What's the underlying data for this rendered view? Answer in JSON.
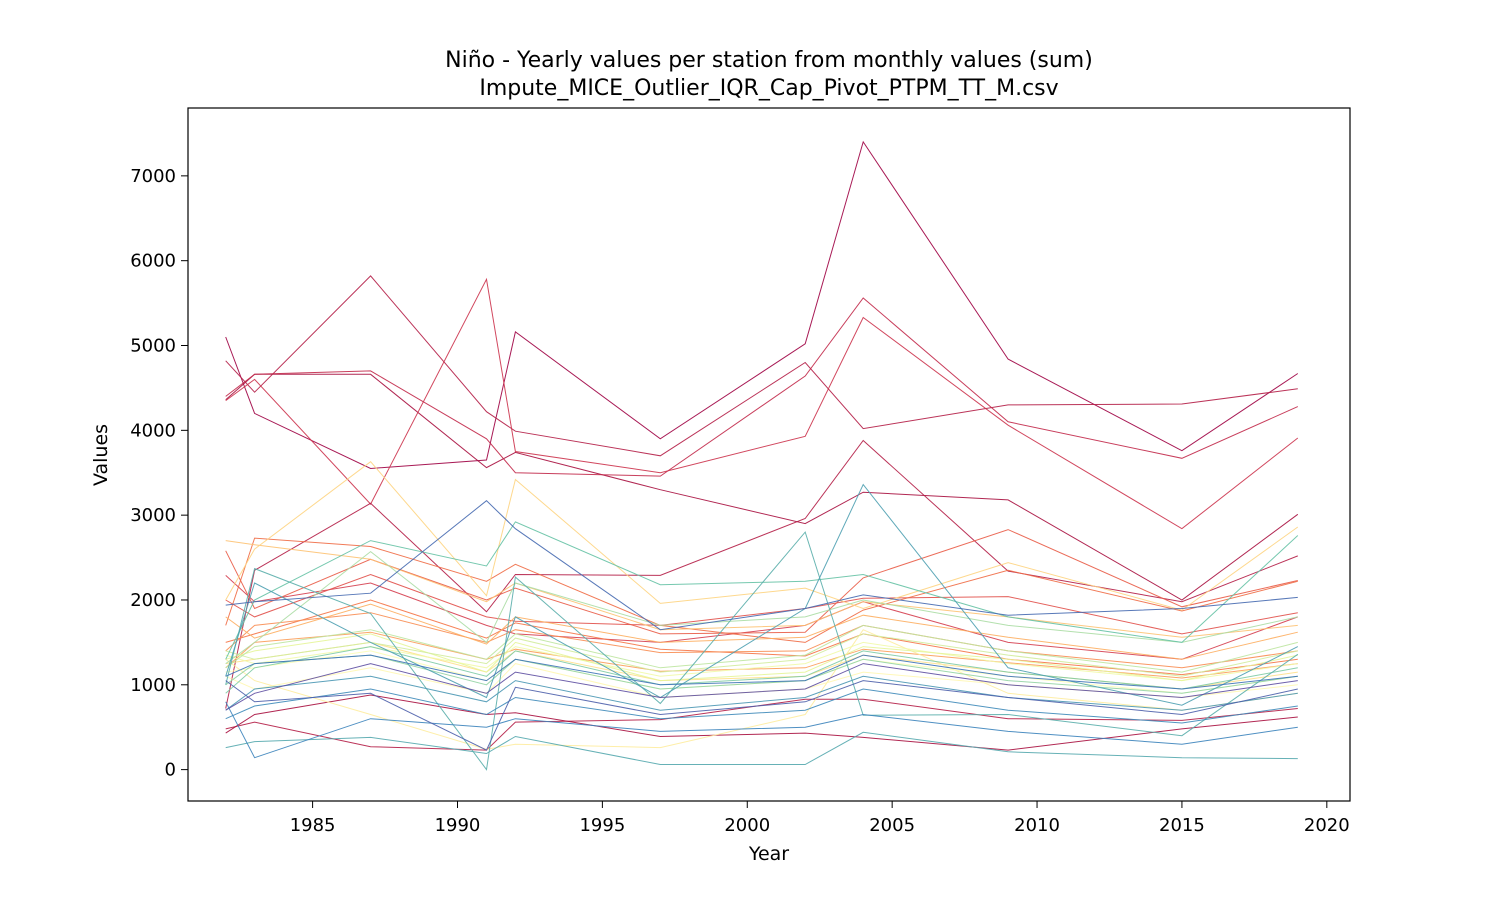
{
  "chart_data": {
    "type": "line",
    "title": "Niño - Yearly values per station from monthly values (sum)",
    "subtitle": "Impute_MICE_Outlier_IQR_Cap_Pivot_PTPM_TT_M.csv",
    "xlabel": "Year",
    "ylabel": "Values",
    "xlim": [
      1980.7,
      2020.8
    ],
    "ylim": [
      -370,
      7800
    ],
    "xticks": [
      "1985",
      "1990",
      "1995",
      "2000",
      "2005",
      "2010",
      "2015",
      "2020"
    ],
    "yticks": [
      "0",
      "1000",
      "2000",
      "3000",
      "4000",
      "5000",
      "6000",
      "7000"
    ],
    "grid": false,
    "legend": "none",
    "colormap": "Spectral",
    "x": [
      1982,
      1983,
      1987,
      1991,
      1992,
      1997,
      2002,
      2004,
      2009,
      2015,
      2019
    ],
    "series": [
      {
        "color": "#9e0142",
        "values": [
          5100,
          4200,
          3550,
          3650,
          5160,
          3900,
          5020,
          7400,
          4840,
          3760,
          4670
        ]
      },
      {
        "color": "#a8103f",
        "values": [
          4360,
          4660,
          4660,
          3560,
          3740,
          3300,
          2900,
          3270,
          3180,
          2000,
          3010
        ]
      },
      {
        "color": "#b41d46",
        "values": [
          4820,
          4450,
          5820,
          4220,
          3990,
          3700,
          4800,
          4020,
          4300,
          4310,
          4490
        ]
      },
      {
        "color": "#c2294a",
        "values": [
          4400,
          4660,
          4700,
          3900,
          3500,
          3460,
          4640,
          5560,
          4100,
          3670,
          4280
        ]
      },
      {
        "color": "#cc334d",
        "values": [
          4350,
          4600,
          3130,
          5780,
          3750,
          3500,
          3930,
          5330,
          4060,
          2840,
          3910
        ]
      },
      {
        "color": "#b41d46",
        "values": [
          720,
          2350,
          3140,
          1860,
          2300,
          2290,
          2960,
          3880,
          2340,
          1980,
          2520
        ]
      },
      {
        "color": "#b41d46",
        "values": [
          480,
          560,
          270,
          230,
          560,
          590,
          830,
          830,
          600,
          580,
          720
        ]
      },
      {
        "color": "#a8103f",
        "values": [
          430,
          650,
          880,
          650,
          670,
          390,
          430,
          380,
          230,
          480,
          620
        ]
      },
      {
        "color": "#d53e4f",
        "values": [
          2290,
          1980,
          2200,
          1700,
          1600,
          1500,
          1700,
          1980,
          1500,
          1300,
          1800
        ]
      },
      {
        "color": "#e1504a",
        "values": [
          2000,
          1800,
          2300,
          1800,
          1750,
          1700,
          1900,
          2020,
          2040,
          1600,
          1850
        ]
      },
      {
        "color": "#e95c47",
        "values": [
          2580,
          1900,
          2480,
          2000,
          2140,
          1600,
          1620,
          2260,
          2830,
          1920,
          2230
        ]
      },
      {
        "color": "#f06c45",
        "values": [
          1700,
          2730,
          2630,
          2220,
          2420,
          1700,
          1500,
          1880,
          2350,
          1870,
          2220
        ]
      },
      {
        "color": "#f57446",
        "values": [
          1500,
          1600,
          2000,
          1550,
          1730,
          1420,
          1340,
          1600,
          1300,
          1120,
          1300
        ]
      },
      {
        "color": "#f88d52",
        "values": [
          1400,
          1700,
          1850,
          1500,
          1650,
          1380,
          1400,
          1700,
          1400,
          1200,
          1400
        ]
      },
      {
        "color": "#fb9d59",
        "values": [
          1200,
          1500,
          1620,
          1300,
          1420,
          1160,
          1200,
          1420,
          1260,
          1080,
          1250
        ]
      },
      {
        "color": "#fdae61",
        "values": [
          1800,
          1550,
          1950,
          1480,
          1800,
          1500,
          1560,
          1820,
          1560,
          1300,
          1620
        ]
      },
      {
        "color": "#fdc272",
        "values": [
          2700,
          2650,
          2480,
          1980,
          2200,
          1650,
          1700,
          1980,
          1800,
          1560,
          1700
        ]
      },
      {
        "color": "#fed481",
        "values": [
          2000,
          2600,
          3630,
          2050,
          3420,
          1960,
          2140,
          1900,
          2440,
          1880,
          2860
        ]
      },
      {
        "color": "#fee08b",
        "values": [
          1250,
          1300,
          1500,
          1150,
          1400,
          1050,
          1100,
          1350,
          1150,
          950,
          1150
        ]
      },
      {
        "color": "#feec9f",
        "values": [
          1300,
          1050,
          650,
          240,
          300,
          260,
          650,
          1650,
          900,
          700,
          900
        ]
      },
      {
        "color": "#fff7b2",
        "values": [
          1100,
          950,
          1200,
          900,
          1250,
          850,
          950,
          1150,
          1000,
          850,
          1000
        ]
      },
      {
        "color": "#fbfdb8",
        "values": [
          1150,
          1200,
          1400,
          1050,
          1300,
          950,
          1050,
          1300,
          1100,
          900,
          1100
        ]
      },
      {
        "color": "#f1f9a9",
        "values": [
          1350,
          1250,
          1450,
          1200,
          1450,
          1100,
          1250,
          1500,
          1250,
          1050,
          1250
        ]
      },
      {
        "color": "#e6f598",
        "values": [
          1300,
          1400,
          1600,
          1150,
          1500,
          1050,
          1150,
          1450,
          1300,
          1050,
          1350
        ]
      },
      {
        "color": "#d1ec9c",
        "values": [
          1400,
          1300,
          1500,
          1250,
          1550,
          1150,
          1300,
          1600,
          1350,
          1100,
          1400
        ]
      },
      {
        "color": "#bee5a0",
        "values": [
          1200,
          1450,
          1650,
          1300,
          1600,
          1200,
          1350,
          1700,
          1400,
          1150,
          1500
        ]
      },
      {
        "color": "#abdda4",
        "values": [
          1250,
          1500,
          2570,
          1500,
          2200,
          1700,
          1800,
          2000,
          1700,
          1500,
          1800
        ]
      },
      {
        "color": "#94d4a4",
        "values": [
          1000,
          1250,
          1350,
          1000,
          1300,
          950,
          1050,
          1300,
          1050,
          900,
          1100
        ]
      },
      {
        "color": "#7ecba4",
        "values": [
          900,
          1200,
          1450,
          1100,
          1400,
          1000,
          1100,
          1400,
          1150,
          950,
          1200
        ]
      },
      {
        "color": "#66c2a5",
        "values": [
          1300,
          2000,
          2700,
          2400,
          2920,
          2180,
          2220,
          2300,
          1800,
          1500,
          2760
        ]
      },
      {
        "color": "#55a8ae",
        "values": [
          260,
          330,
          380,
          190,
          390,
          60,
          60,
          440,
          210,
          140,
          130
        ]
      },
      {
        "color": "#5aaeab",
        "values": [
          1000,
          2370,
          1840,
          0,
          2270,
          780,
          2800,
          640,
          650,
          400,
          1360
        ]
      },
      {
        "color": "#4ea0b1",
        "values": [
          1100,
          2200,
          1500,
          850,
          1800,
          850,
          1900,
          3360,
          1200,
          760,
          1450
        ]
      },
      {
        "color": "#4a97b4",
        "values": [
          700,
          950,
          1100,
          800,
          1050,
          700,
          850,
          1100,
          850,
          700,
          900
        ]
      },
      {
        "color": "#3e8ab9",
        "values": [
          600,
          750,
          950,
          650,
          850,
          600,
          700,
          950,
          700,
          550,
          750
        ]
      },
      {
        "color": "#3b83bb",
        "values": [
          800,
          140,
          600,
          500,
          600,
          450,
          500,
          650,
          450,
          300,
          500
        ]
      },
      {
        "color": "#3d73b6",
        "values": [
          1100,
          1250,
          1350,
          1050,
          1300,
          1000,
          1050,
          1350,
          1100,
          950,
          1100
        ]
      },
      {
        "color": "#4569b0",
        "values": [
          1940,
          1980,
          2080,
          3170,
          2840,
          1650,
          1900,
          2060,
          1820,
          1900,
          2030
        ]
      },
      {
        "color": "#4d5fab",
        "values": [
          1050,
          800,
          900,
          230,
          970,
          650,
          800,
          1050,
          850,
          650,
          950
        ]
      },
      {
        "color": "#5e4fa2",
        "values": [
          700,
          900,
          1250,
          900,
          1150,
          850,
          950,
          1250,
          1000,
          850,
          1050
        ]
      }
    ]
  }
}
